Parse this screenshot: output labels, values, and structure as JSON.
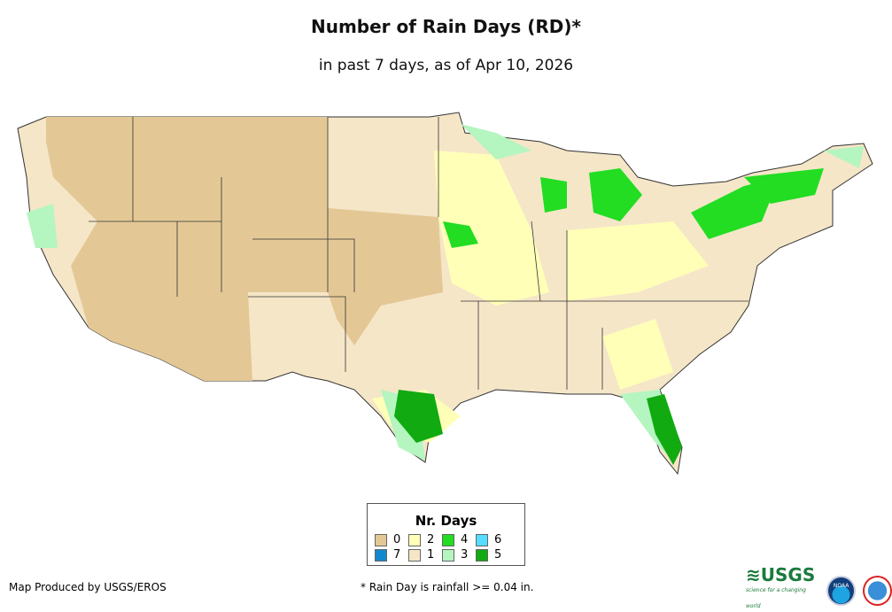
{
  "title": "Number of Rain Days (RD)*",
  "subtitle": "in past 7 days, as of Apr 10, 2026",
  "legend": {
    "title": "Nr. Days",
    "items": [
      {
        "label": "0",
        "color": "#e3c896"
      },
      {
        "label": "2",
        "color": "#ffffb8"
      },
      {
        "label": "4",
        "color": "#22dd22"
      },
      {
        "label": "6",
        "color": "#55ddff"
      },
      {
        "label": "7",
        "color": "#1188cc"
      },
      {
        "label": "1",
        "color": "#f5e6c8"
      },
      {
        "label": "3",
        "color": "#b4f5c0"
      },
      {
        "label": "5",
        "color": "#11aa11"
      }
    ]
  },
  "credit": "Map Produced by USGS/EROS",
  "footnote": "* Rain Day is rainfall >= 0.04 in.",
  "logos": {
    "usgs": "USGS",
    "usgs_tagline": "science for a changing world",
    "noaa": "NOAA",
    "nws": "National Weather Service"
  }
}
